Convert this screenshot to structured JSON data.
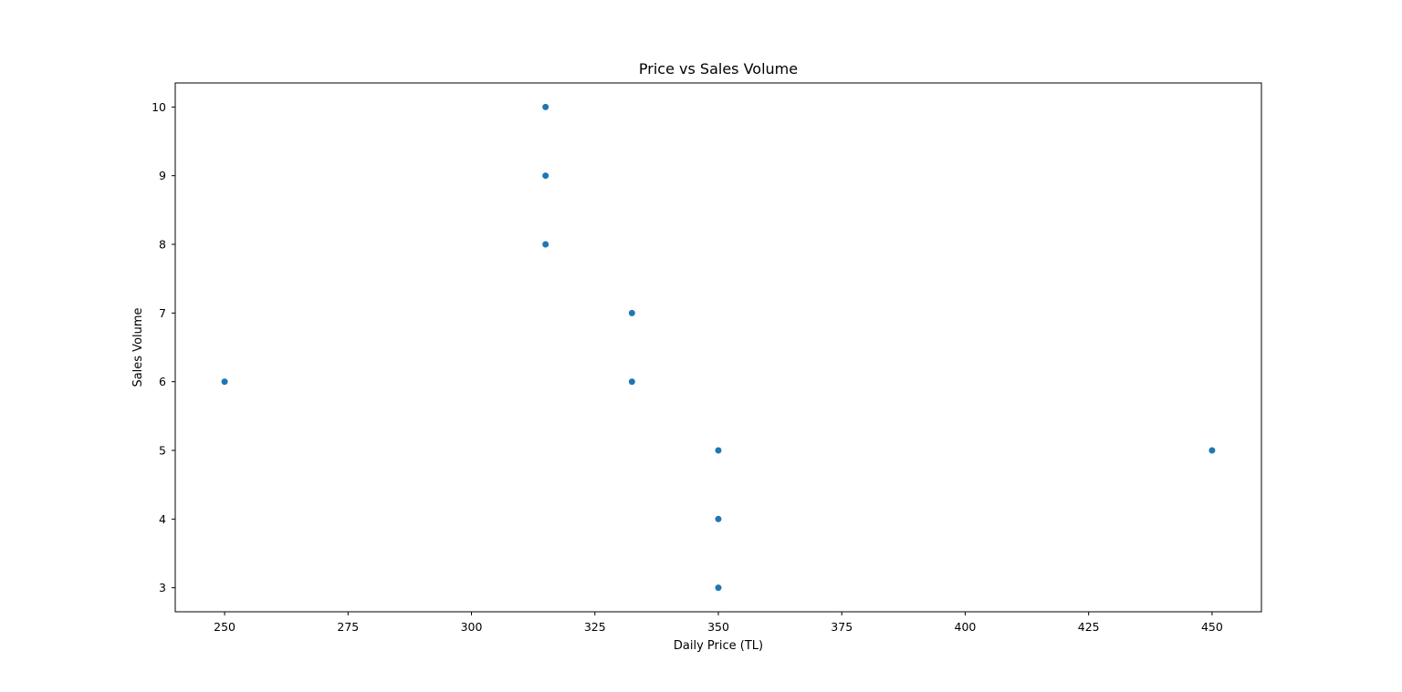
{
  "chart_data": {
    "type": "scatter",
    "title": "Price vs Sales Volume",
    "xlabel": "Daily Price (TL)",
    "ylabel": "Sales Volume",
    "xlim": [
      240,
      460
    ],
    "ylim": [
      2.65,
      10.35
    ],
    "xticks": [
      250,
      275,
      300,
      325,
      350,
      375,
      400,
      425,
      450
    ],
    "yticks": [
      3,
      4,
      5,
      6,
      7,
      8,
      9,
      10
    ],
    "grid": false,
    "marker_color": "#1f77b4",
    "points": [
      {
        "x": 250,
        "y": 6
      },
      {
        "x": 315,
        "y": 10
      },
      {
        "x": 315,
        "y": 9
      },
      {
        "x": 315,
        "y": 8
      },
      {
        "x": 332.5,
        "y": 7
      },
      {
        "x": 332.5,
        "y": 6
      },
      {
        "x": 350,
        "y": 5
      },
      {
        "x": 350,
        "y": 4
      },
      {
        "x": 350,
        "y": 3
      },
      {
        "x": 450,
        "y": 5
      }
    ]
  }
}
